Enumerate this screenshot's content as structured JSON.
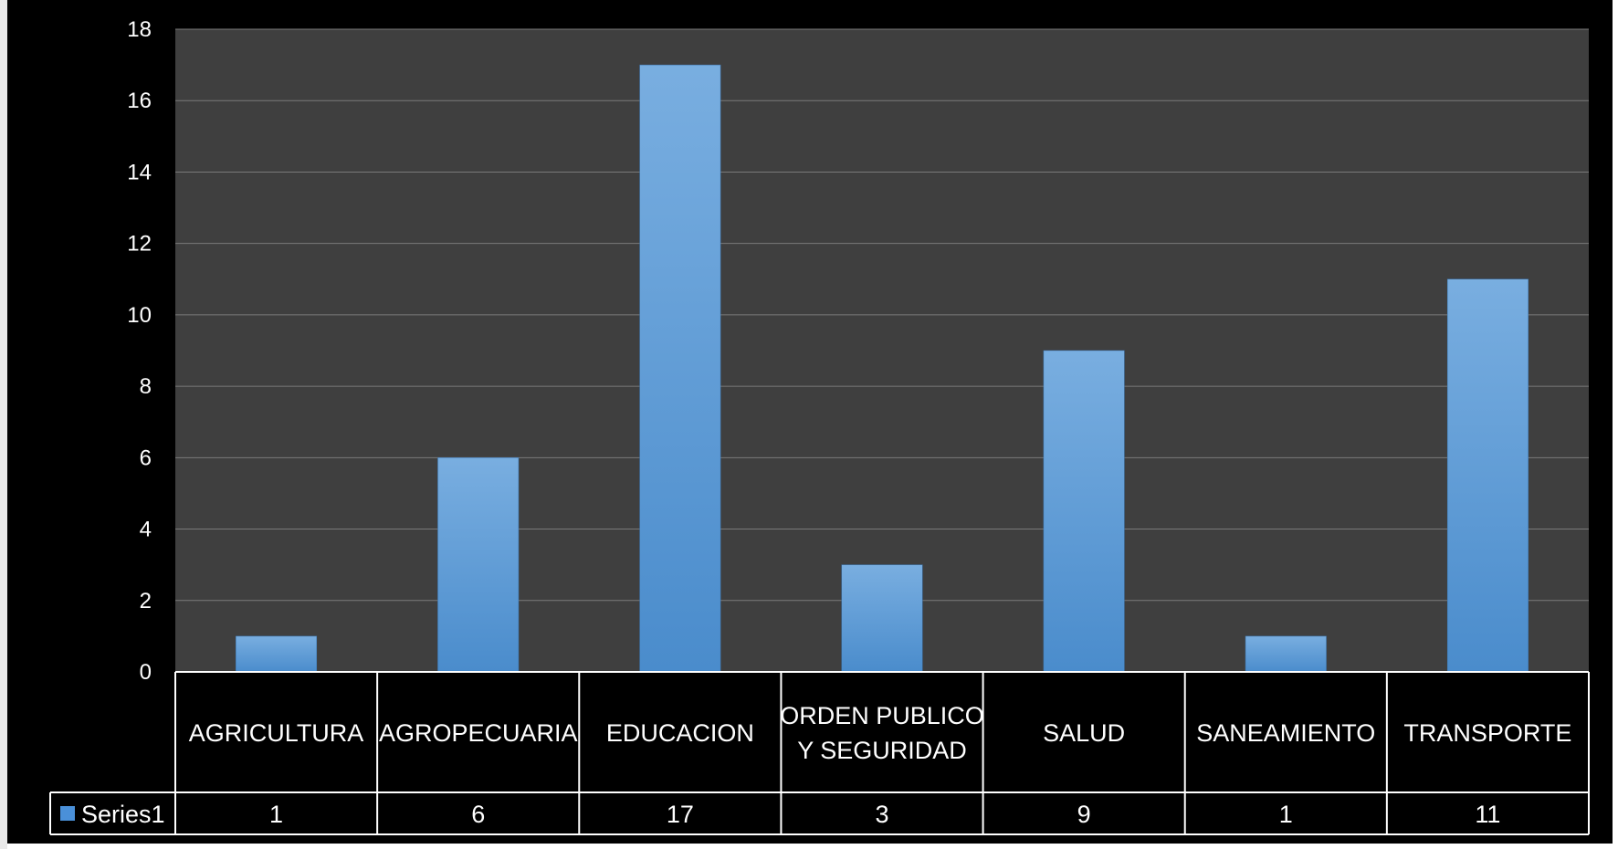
{
  "colors": {
    "background": "#000000",
    "plot_area": "#3f3f3f",
    "gridline": "#7a7a7a",
    "bar_top": "#79aee0",
    "bar_bottom": "#4a8ccc",
    "legend_key": "#4a90d9",
    "text": "#ffffff",
    "table_border": "#ffffff"
  },
  "chart_data": {
    "type": "bar",
    "categories": [
      "AGRICULTURA",
      "AGROPECUARIA",
      "EDUCACION",
      "ORDEN PUBLICO Y SEGURIDAD",
      "SALUD",
      "SANEAMIENTO",
      "TRANSPORTE"
    ],
    "series": [
      {
        "name": "Series1",
        "values": [
          1,
          6,
          17,
          3,
          9,
          1,
          11
        ]
      }
    ],
    "y_ticks": [
      0,
      2,
      4,
      6,
      8,
      10,
      12,
      14,
      16,
      18
    ],
    "ylim": [
      0,
      18
    ],
    "grid": true,
    "data_table": true,
    "legend": "in-data-table"
  }
}
